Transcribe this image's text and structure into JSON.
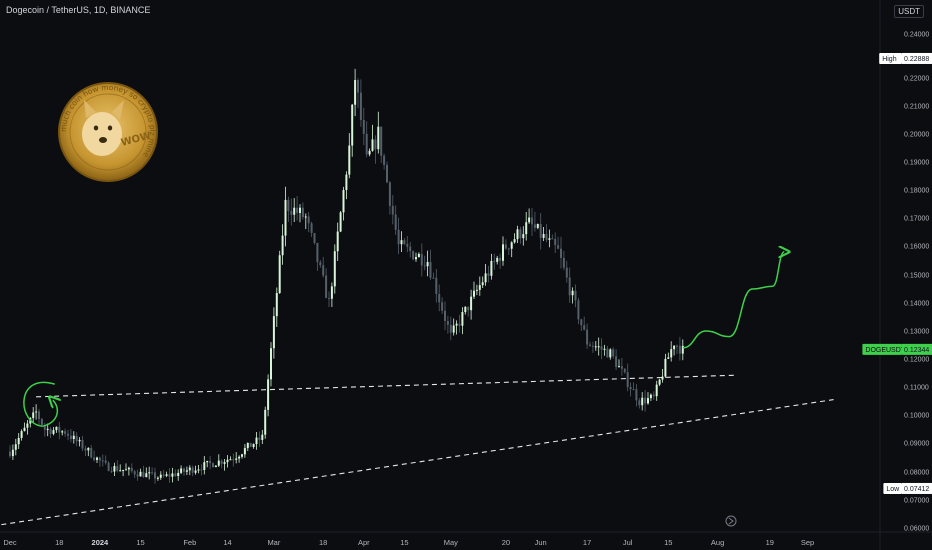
{
  "header": {
    "title": "Dogecoin / TetherUS, 1D, BINANCE",
    "currency": "USDT"
  },
  "logo": {
    "center_text": "WOW",
    "ring_text": "much coin how money so crypto plz mine"
  },
  "colors": {
    "background": "#0c0d10",
    "candle_up": "#d7f5d9",
    "candle_down": "#55606b",
    "annotation": "#3ed04b",
    "level_line": "#ffffff",
    "tag_green": "#3ed04b"
  },
  "chart_data": {
    "type": "candlestick",
    "title": "Dogecoin / TetherUS, 1D, BINANCE",
    "y_unit": "USDT",
    "y_ticks": [
      0.06,
      0.07,
      0.08,
      0.09,
      0.1,
      0.11,
      0.12,
      0.13,
      0.14,
      0.15,
      0.16,
      0.17,
      0.18,
      0.19,
      0.2,
      0.21,
      0.22,
      0.24
    ],
    "y_tick_labels": [
      "0.06000",
      "0.07000",
      "0.08000",
      "0.09000",
      "0.10000",
      "0.11000",
      "0.12000",
      "0.13000",
      "0.14000",
      "0.15000",
      "0.16000",
      "0.17000",
      "0.18000",
      "0.19000",
      "0.20000",
      "0.21000",
      "0.22000",
      "0.24000"
    ],
    "x_tick_labels": [
      "Dec",
      "18",
      "2024",
      "15",
      "Feb",
      "14",
      "Mar",
      "18",
      "Apr",
      "15",
      "May",
      "20",
      "Jun",
      "17",
      "Jul",
      "15",
      "Aug",
      "19",
      "Sep"
    ],
    "bold_x_tick": "2024",
    "high_label": "High",
    "high_value": "0.22888",
    "low_label": "Low",
    "low_value": "0.07412",
    "current_symbol": "DOGEUSDT",
    "current_value": "0.12344",
    "key_points": [
      {
        "date": "2023-12-01",
        "price": 0.087
      },
      {
        "date": "2023-12-10",
        "price": 0.101
      },
      {
        "date": "2023-12-13",
        "price": 0.095
      },
      {
        "date": "2023-12-20",
        "price": 0.094
      },
      {
        "date": "2024-01-03",
        "price": 0.082
      },
      {
        "date": "2024-01-22",
        "price": 0.078
      },
      {
        "date": "2024-02-16",
        "price": 0.085
      },
      {
        "date": "2024-02-26",
        "price": 0.092
      },
      {
        "date": "2024-03-05",
        "price": 0.175
      },
      {
        "date": "2024-03-12",
        "price": 0.17
      },
      {
        "date": "2024-03-20",
        "price": 0.14
      },
      {
        "date": "2024-03-27",
        "price": 0.195
      },
      {
        "date": "2024-03-29",
        "price": 0.22
      },
      {
        "date": "2024-04-02",
        "price": 0.19
      },
      {
        "date": "2024-04-06",
        "price": 0.2
      },
      {
        "date": "2024-04-13",
        "price": 0.16
      },
      {
        "date": "2024-04-23",
        "price": 0.155
      },
      {
        "date": "2024-05-01",
        "price": 0.128
      },
      {
        "date": "2024-05-12",
        "price": 0.148
      },
      {
        "date": "2024-05-20",
        "price": 0.16
      },
      {
        "date": "2024-05-28",
        "price": 0.168
      },
      {
        "date": "2024-06-07",
        "price": 0.158
      },
      {
        "date": "2024-06-17",
        "price": 0.126
      },
      {
        "date": "2024-06-25",
        "price": 0.122
      },
      {
        "date": "2024-07-05",
        "price": 0.105
      },
      {
        "date": "2024-07-10",
        "price": 0.106
      },
      {
        "date": "2024-07-14",
        "price": 0.118
      },
      {
        "date": "2024-07-17",
        "price": 0.126
      },
      {
        "date": "2024-07-20",
        "price": 0.123
      }
    ],
    "lines": [
      {
        "name": "horizontal-resistance",
        "style": "dashed",
        "points": [
          [
            "2023-12-10",
            0.1065
          ],
          [
            "2024-08-07",
            0.1142
          ]
        ]
      },
      {
        "name": "rising-support",
        "style": "dashed",
        "points": [
          [
            "2023-11-28",
            0.0612
          ],
          [
            "2024-09-10",
            0.1055
          ]
        ]
      }
    ],
    "projection": [
      [
        "2024-07-20",
        0.124
      ],
      [
        "2024-07-28",
        0.13
      ],
      [
        "2024-08-05",
        0.128
      ],
      [
        "2024-08-13",
        0.145
      ],
      [
        "2024-08-20",
        0.146
      ],
      [
        "2024-08-24",
        0.158
      ]
    ],
    "grid": false
  }
}
